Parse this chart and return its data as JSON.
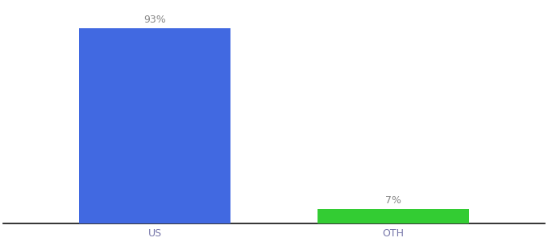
{
  "categories": [
    "US",
    "OTH"
  ],
  "values": [
    93,
    7
  ],
  "bar_colors": [
    "#4169e1",
    "#33cc33"
  ],
  "labels": [
    "93%",
    "7%"
  ],
  "ylim": [
    0,
    105
  ],
  "background_color": "#ffffff",
  "label_fontsize": 9,
  "tick_fontsize": 9,
  "bar_width": 0.28,
  "x_positions": [
    0.28,
    0.72
  ],
  "xlim": [
    0.0,
    1.0
  ],
  "label_color": "#888888",
  "tick_color": "#7777aa"
}
